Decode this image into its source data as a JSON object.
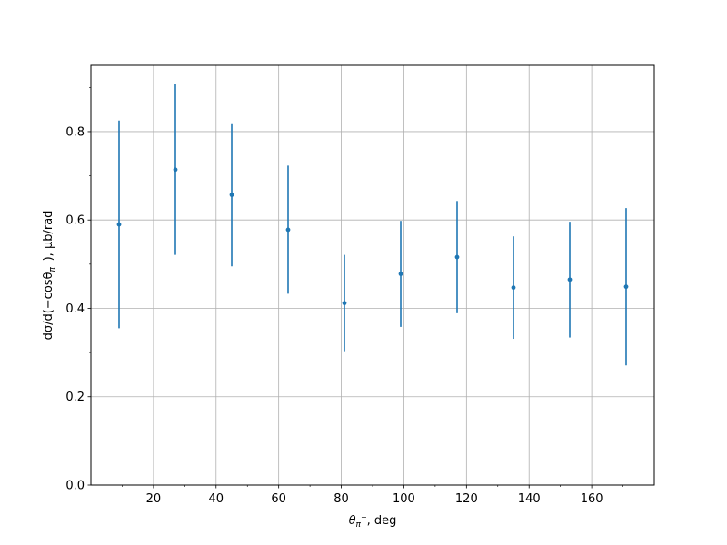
{
  "chart_data": {
    "type": "scatter",
    "title": "",
    "xlabel": {
      "prefix": "θ",
      "sub": "π",
      "sup": "−",
      "suffix": ", deg"
    },
    "ylabel": {
      "p1": "dσ/d(−cosθ",
      "sub": "π",
      "sup": "−",
      "p2": "), μb/rad"
    },
    "xlim": [
      0,
      180
    ],
    "ylim": [
      0,
      0.95
    ],
    "xticks": [
      20,
      40,
      60,
      80,
      100,
      120,
      140,
      160
    ],
    "xtick_labels": [
      "20",
      "40",
      "60",
      "80",
      "100",
      "120",
      "140",
      "160"
    ],
    "xminor": [
      10,
      30,
      50,
      70,
      90,
      110,
      130,
      150,
      170
    ],
    "yticks": [
      0.0,
      0.2,
      0.4,
      0.6,
      0.8
    ],
    "ytick_labels": [
      "0.0",
      "0.2",
      "0.4",
      "0.6",
      "0.8"
    ],
    "yminor": [
      0.1,
      0.3,
      0.5,
      0.7,
      0.9
    ],
    "grid": true,
    "legend": "none",
    "colors": {
      "series": "#1f77b4",
      "grid": "#b0b0b0",
      "axis": "#000000"
    },
    "series": [
      {
        "x": [
          9,
          27,
          45,
          63,
          81,
          99,
          117,
          135,
          153,
          171
        ],
        "y": [
          0.59,
          0.714,
          0.657,
          0.578,
          0.412,
          0.478,
          0.516,
          0.447,
          0.465,
          0.449
        ],
        "yerr": [
          0.235,
          0.193,
          0.162,
          0.145,
          0.109,
          0.12,
          0.127,
          0.116,
          0.131,
          0.178
        ]
      }
    ]
  }
}
